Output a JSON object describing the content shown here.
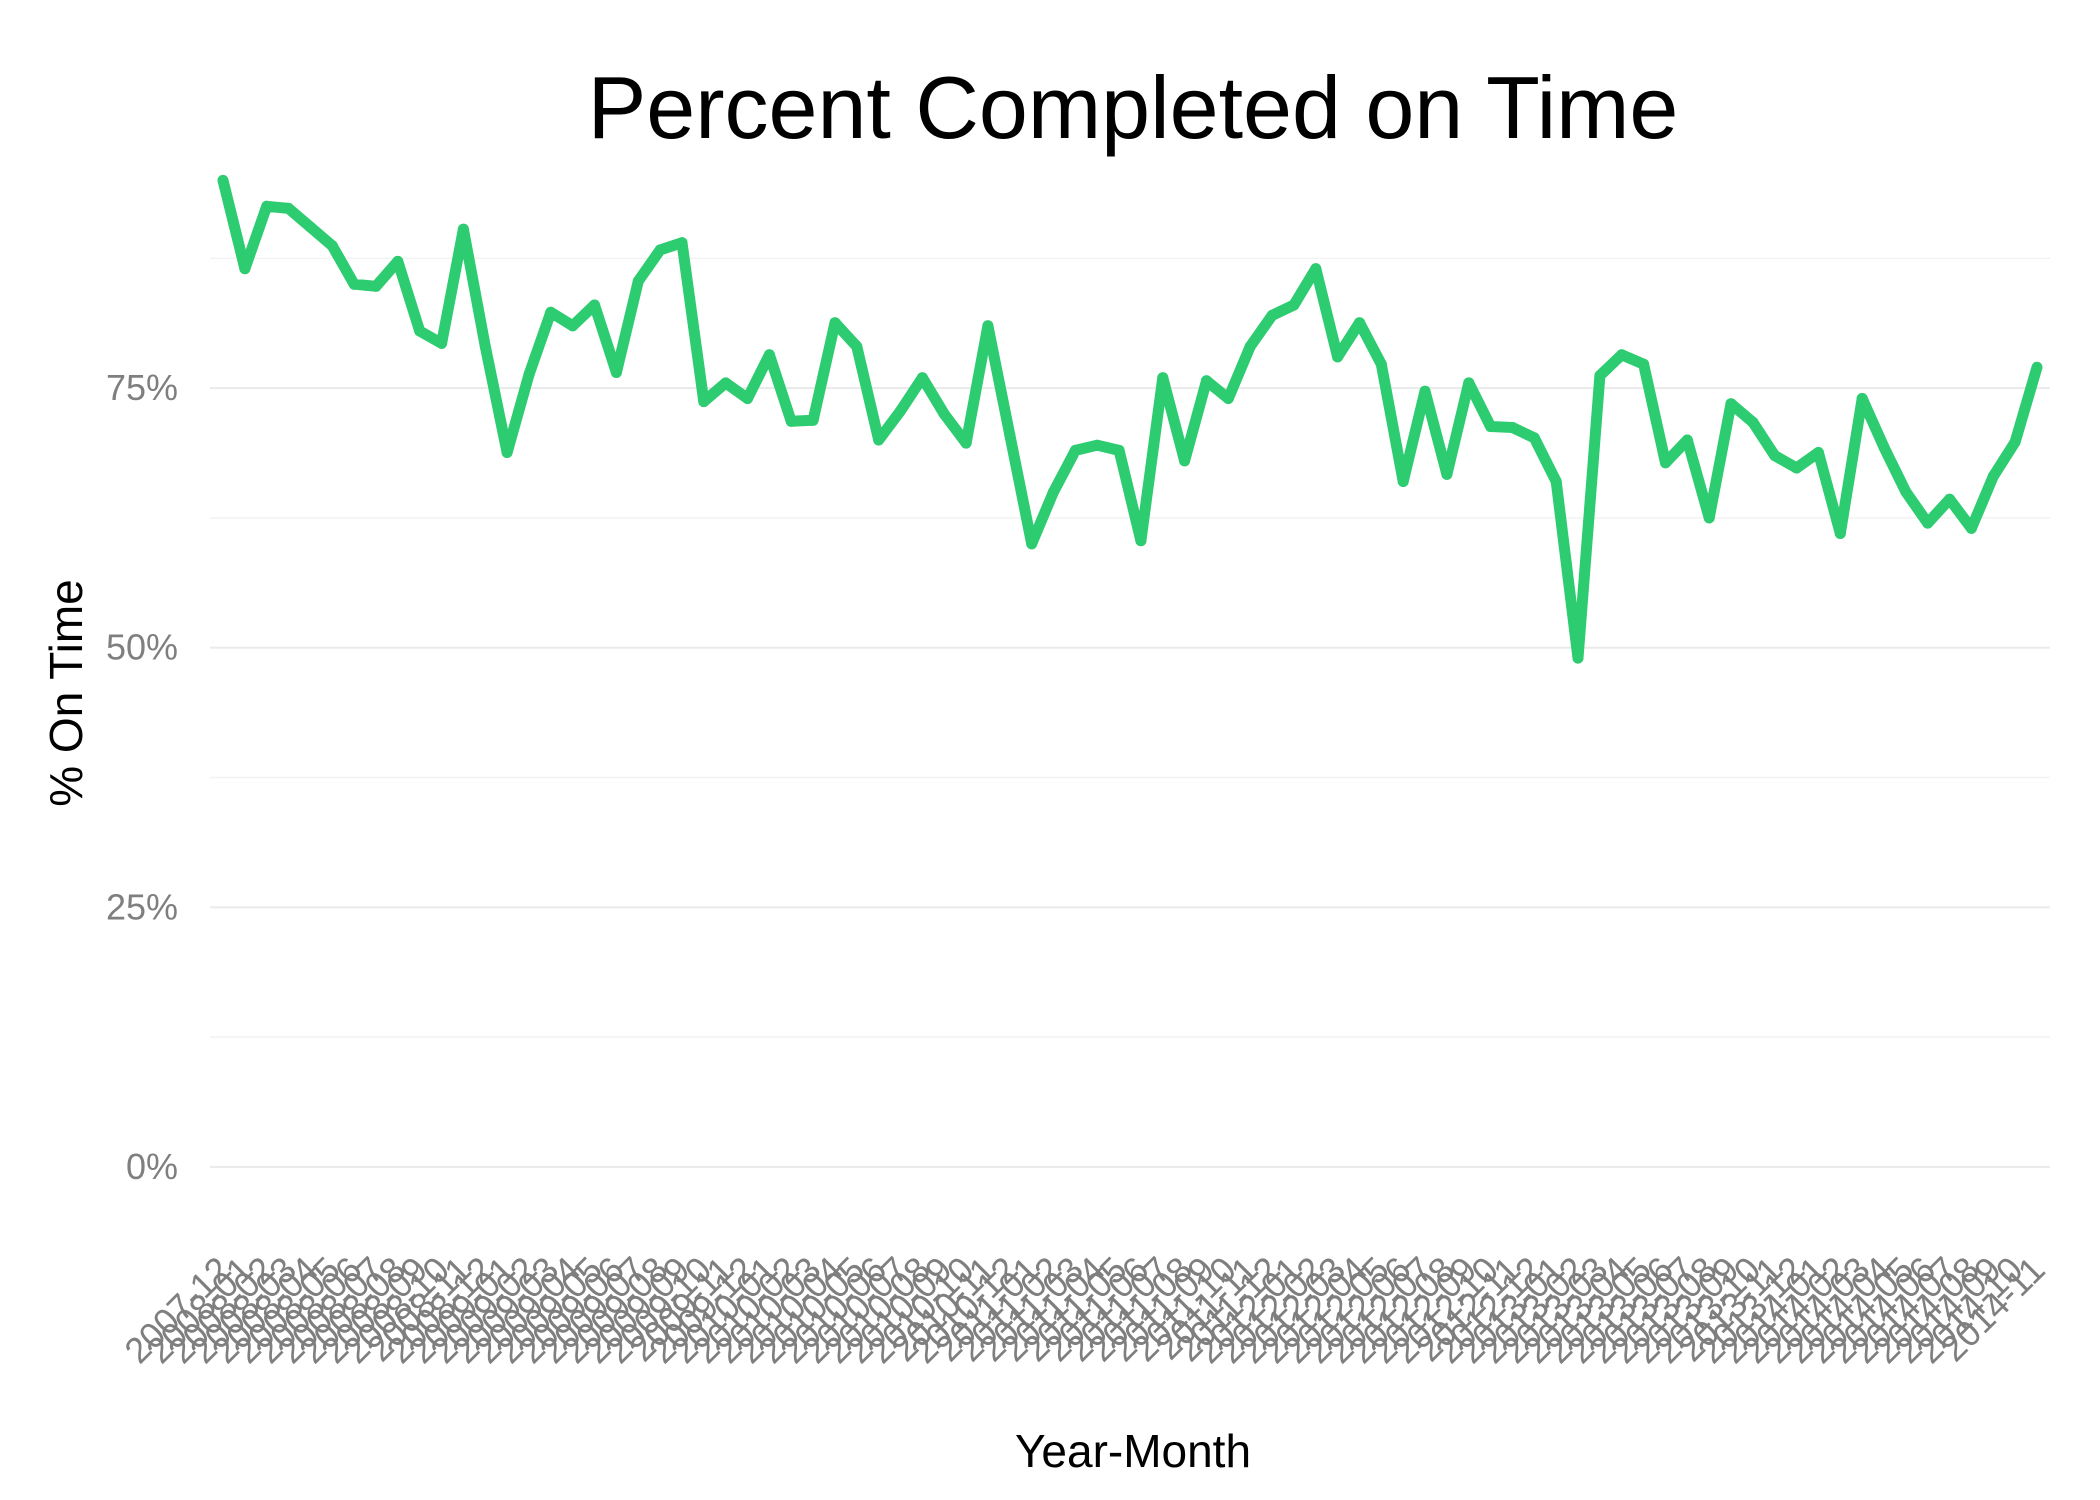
{
  "chart_data": {
    "type": "line",
    "title": "Percent Completed on Time",
    "xlabel": "Year-Month",
    "ylabel": "% On Time",
    "y_ticks": [
      "0%",
      "25%",
      "50%",
      "75%"
    ],
    "ylim": [
      -0.08,
      0.96
    ],
    "grid": "horizontal only",
    "legend": "none",
    "line_color": "#2ECC71",
    "x": [
      "2007-12",
      "2008-01",
      "2008-02",
      "2008-03",
      "2008-04",
      "2008-05",
      "2008-06",
      "2008-07",
      "2008-08",
      "2008-09",
      "2008-10",
      "2008-11",
      "2008-12",
      "2009-01",
      "2009-02",
      "2009-03",
      "2009-04",
      "2009-05",
      "2009-06",
      "2009-07",
      "2009-08",
      "2009-09",
      "2009-10",
      "2009-11",
      "2009-12",
      "2010-01",
      "2010-02",
      "2010-03",
      "2010-04",
      "2010-05",
      "2010-06",
      "2010-07",
      "2010-08",
      "2010-09",
      "2010-10",
      "2010-11",
      "2010-12",
      "2011-01",
      "2011-02",
      "2011-03",
      "2011-04",
      "2011-05",
      "2011-06",
      "2011-07",
      "2011-08",
      "2011-09",
      "2011-10",
      "2011-11",
      "2011-12",
      "2012-01",
      "2012-02",
      "2012-03",
      "2012-04",
      "2012-05",
      "2012-06",
      "2012-07",
      "2012-08",
      "2012-09",
      "2012-10",
      "2012-11",
      "2012-12",
      "2013-01",
      "2013-02",
      "2013-03",
      "2013-04",
      "2013-05",
      "2013-06",
      "2013-07",
      "2013-08",
      "2013-09",
      "2013-10",
      "2013-11",
      "2013-12",
      "2014-01",
      "2014-02",
      "2014-03",
      "2014-04",
      "2014-05",
      "2014-06",
      "2014-07",
      "2014-08",
      "2014-09",
      "2014-10",
      "2014-11"
    ],
    "values": [
      0.95,
      0.865,
      0.925,
      0.923,
      0.905,
      0.887,
      0.85,
      0.848,
      0.872,
      0.805,
      0.793,
      0.903,
      0.79,
      0.688,
      0.763,
      0.823,
      0.81,
      0.83,
      0.765,
      0.853,
      0.883,
      0.89,
      0.737,
      0.755,
      0.74,
      0.782,
      0.718,
      0.719,
      0.813,
      0.79,
      0.7,
      0.728,
      0.76,
      0.725,
      0.697,
      0.81,
      0.705,
      0.6,
      0.65,
      0.69,
      0.695,
      0.69,
      0.603,
      0.76,
      0.68,
      0.757,
      0.74,
      0.79,
      0.82,
      0.83,
      0.865,
      0.78,
      0.813,
      0.773,
      0.66,
      0.747,
      0.667,
      0.755,
      0.713,
      0.712,
      0.702,
      0.66,
      0.49,
      0.762,
      0.782,
      0.773,
      0.678,
      0.7,
      0.625,
      0.735,
      0.717,
      0.685,
      0.673,
      0.688,
      0.61,
      0.74,
      0.693,
      0.65,
      0.62,
      0.643,
      0.615,
      0.665,
      0.698,
      0.77
    ]
  }
}
